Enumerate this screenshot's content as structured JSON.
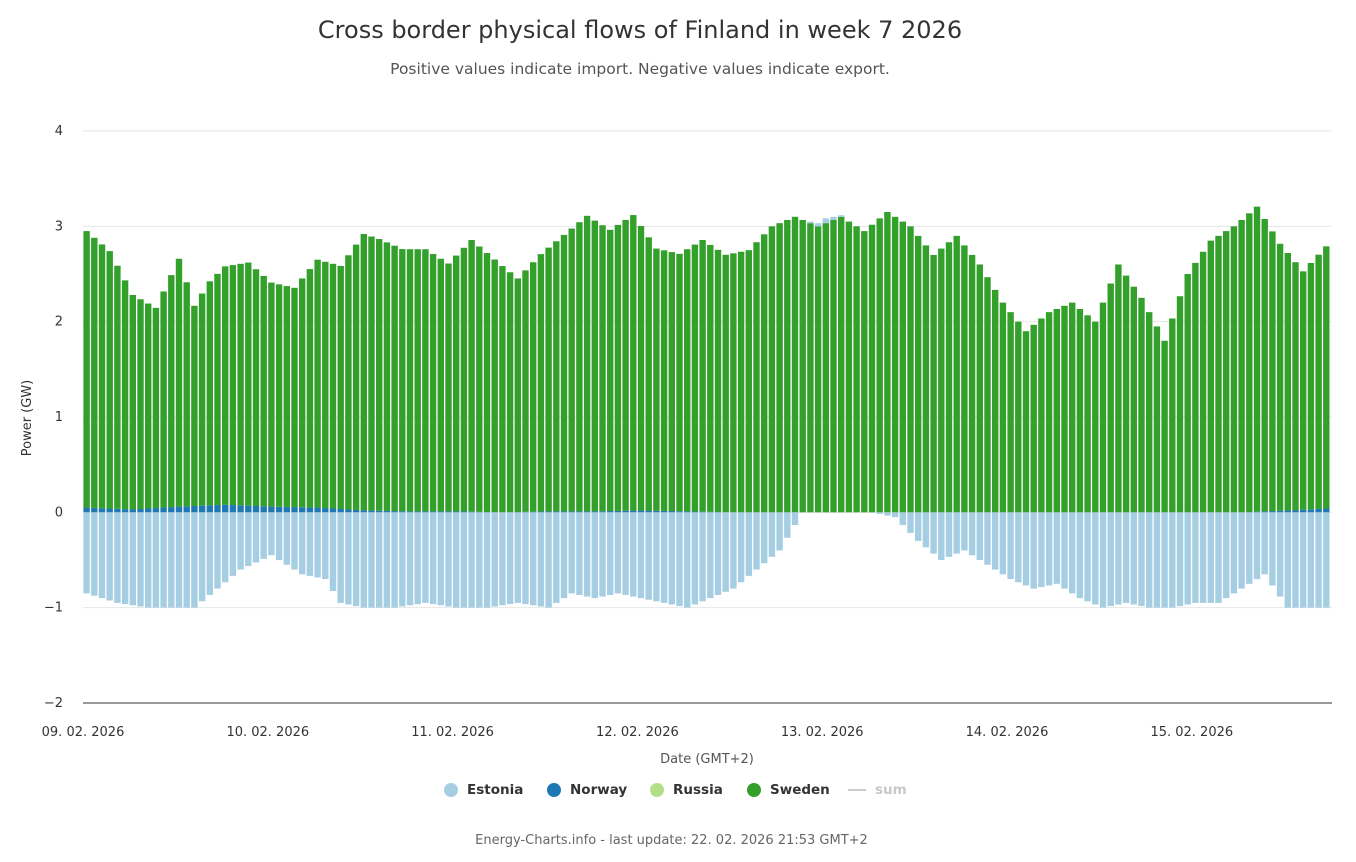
{
  "header": {
    "title": "Cross border physical flows of Finland in week 7 2026",
    "subtitle": "Positive values indicate import. Negative values indicate export."
  },
  "footer": {
    "text": "Energy-Charts.info - last update: 22. 02. 2026 21:53 GMT+2"
  },
  "legend": {
    "items": [
      {
        "label": "Estonia",
        "color": "#a6cee3",
        "kind": "dot",
        "visible": true
      },
      {
        "label": "Norway",
        "color": "#1f78b4",
        "kind": "dot",
        "visible": true
      },
      {
        "label": "Russia",
        "color": "#b2df8a",
        "kind": "dot",
        "visible": true
      },
      {
        "label": "Sweden",
        "color": "#33a02c",
        "kind": "dot",
        "visible": true
      },
      {
        "label": "sum",
        "color": "#cccccc",
        "kind": "line",
        "visible": false
      }
    ]
  },
  "chart_data": {
    "type": "bar",
    "stacked": true,
    "title": "Cross border physical flows of Finland in week 7 2026",
    "subtitle": "Positive values indicate import. Negative values indicate export.",
    "xlabel": "Date (GMT+2)",
    "ylabel": "Power (GW)",
    "ylim": [
      -2,
      4
    ],
    "yticks": [
      4,
      3,
      2,
      1,
      0,
      -1,
      -2
    ],
    "ytick_labels": [
      "4",
      "3",
      "2",
      "1",
      "0",
      "−1",
      "−2"
    ],
    "x_tick_labels": [
      "09. 02. 2026",
      "10. 02. 2026",
      "11. 02. 2026",
      "12. 02. 2026",
      "13. 02. 2026",
      "14. 02. 2026",
      "15. 02. 2026"
    ],
    "hours_shown": 162,
    "resolution": "hourly (interpolated from anchor readings)",
    "series": [
      {
        "name": "Sweden",
        "color": "#33a02c",
        "anchor_hours": [
          0,
          3,
          6,
          9,
          12,
          14,
          16,
          18,
          21,
          24,
          27,
          30,
          33,
          36,
          38,
          41,
          44,
          47,
          50,
          53,
          56,
          59,
          62,
          65,
          68,
          71,
          74,
          77,
          80,
          83,
          86,
          89,
          92,
          95,
          98,
          101,
          104,
          107,
          110,
          113,
          116,
          119,
          122,
          125,
          128,
          131,
          134,
          137,
          140,
          143,
          146,
          149,
          152,
          155,
          158,
          161
        ],
        "anchor_values": [
          2.9,
          2.7,
          2.25,
          2.1,
          2.6,
          2.1,
          2.35,
          2.5,
          2.55,
          2.35,
          2.3,
          2.6,
          2.55,
          2.9,
          2.85,
          2.75,
          2.75,
          2.6,
          2.85,
          2.65,
          2.45,
          2.7,
          2.9,
          3.1,
          2.95,
          3.1,
          2.75,
          2.7,
          2.85,
          2.7,
          2.75,
          3.0,
          3.1,
          3.0,
          3.1,
          2.95,
          3.15,
          3.0,
          2.7,
          2.9,
          2.6,
          2.2,
          1.9,
          2.1,
          2.2,
          2.0,
          2.6,
          2.25,
          1.8,
          2.5,
          2.85,
          3.0,
          3.2,
          2.8,
          2.5,
          2.75
        ]
      },
      {
        "name": "Norway",
        "color": "#1f78b4",
        "anchor_hours": [
          0,
          3,
          6,
          12,
          18,
          24,
          30,
          36,
          42,
          48,
          54,
          60,
          66,
          72,
          78,
          84,
          90,
          96,
          102,
          108,
          114,
          120,
          126,
          132,
          138,
          144,
          150,
          156,
          161
        ],
        "anchor_values": [
          0.05,
          0.04,
          0.03,
          0.06,
          0.08,
          0.06,
          0.05,
          0.02,
          0.01,
          0.01,
          0.0,
          0.01,
          0.01,
          0.02,
          0.01,
          0.0,
          0.0,
          0.0,
          0.0,
          0.0,
          0.0,
          0.0,
          0.0,
          0.0,
          0.0,
          0.0,
          0.0,
          0.02,
          0.04
        ]
      },
      {
        "name": "Estonia",
        "color": "#a6cee3",
        "anchor_hours": [
          0,
          4,
          8,
          14,
          17,
          20,
          24,
          26,
          28,
          31,
          33,
          36,
          40,
          44,
          48,
          52,
          56,
          60,
          63,
          66,
          69,
          72,
          75,
          78,
          81,
          84,
          87,
          90,
          93,
          96,
          99,
          102,
          105,
          108,
          111,
          114,
          117,
          120,
          123,
          126,
          129,
          132,
          135,
          138,
          141,
          144,
          147,
          150,
          153,
          156,
          159,
          161
        ],
        "anchor_values": [
          -0.85,
          -0.95,
          -1.0,
          -1.0,
          -0.8,
          -0.6,
          -0.45,
          -0.55,
          -0.65,
          -0.7,
          -0.95,
          -1.0,
          -1.0,
          -0.95,
          -1.0,
          -1.0,
          -0.95,
          -1.0,
          -0.85,
          -0.9,
          -0.85,
          -0.9,
          -0.95,
          -1.0,
          -0.9,
          -0.8,
          -0.6,
          -0.4,
          0.0,
          0.05,
          0.0,
          0.0,
          -0.05,
          -0.3,
          -0.5,
          -0.4,
          -0.55,
          -0.7,
          -0.8,
          -0.75,
          -0.9,
          -1.0,
          -0.95,
          -1.0,
          -1.0,
          -0.95,
          -0.95,
          -0.8,
          -0.65,
          -1.0,
          -1.0,
          -1.0
        ]
      },
      {
        "name": "Russia",
        "color": "#b2df8a",
        "anchor_hours": [
          0,
          161
        ],
        "anchor_values": [
          0.0,
          0.0
        ]
      }
    ],
    "sum_series_visible": false
  }
}
